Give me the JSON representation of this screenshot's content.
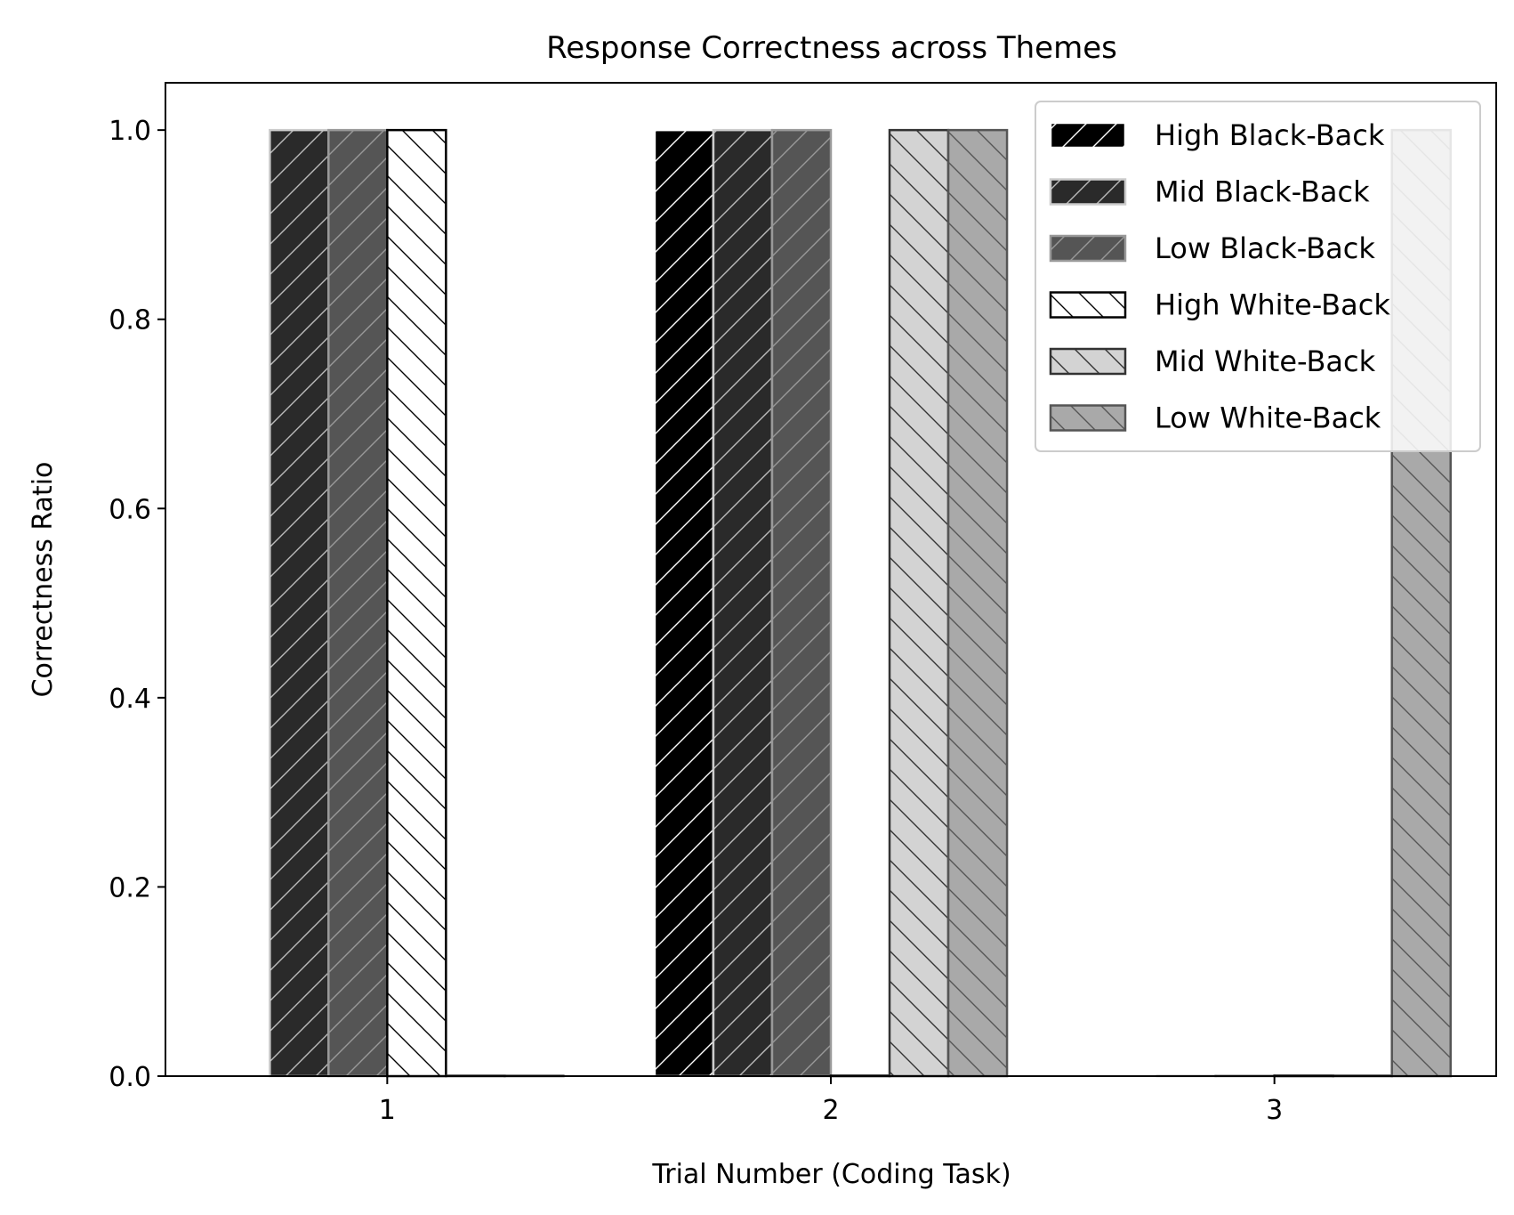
{
  "chart_data": {
    "type": "bar",
    "title": "Response Correctness across Themes",
    "xlabel": "Trial Number (Coding Task)",
    "ylabel": "Correctness Ratio",
    "categories": [
      "1",
      "2",
      "3"
    ],
    "ylim": [
      0,
      1.05
    ],
    "yticks": [
      "0.0",
      "0.2",
      "0.4",
      "0.6",
      "0.8",
      "1.0"
    ],
    "legend_position": "top-right",
    "grid": false,
    "series": [
      {
        "name": "High Black-Back",
        "values": [
          0,
          1,
          0
        ],
        "fill": "#000000",
        "edge": "#ffffff",
        "hatch": "/",
        "hatch_color": "#ffffff"
      },
      {
        "name": "Mid Black-Back",
        "values": [
          1,
          1,
          0
        ],
        "fill": "#2a2a2a",
        "edge": "#cccccc",
        "hatch": "/",
        "hatch_color": "#bbbbbb"
      },
      {
        "name": "Low Black-Back",
        "values": [
          1,
          1,
          0
        ],
        "fill": "#555555",
        "edge": "#999999",
        "hatch": "/",
        "hatch_color": "#999999"
      },
      {
        "name": "High White-Back",
        "values": [
          1,
          0,
          0
        ],
        "fill": "#ffffff",
        "edge": "#000000",
        "hatch": "\\",
        "hatch_color": "#000000"
      },
      {
        "name": "Mid White-Back",
        "values": [
          0,
          1,
          0
        ],
        "fill": "#d3d3d3",
        "edge": "#333333",
        "hatch": "\\",
        "hatch_color": "#333333"
      },
      {
        "name": "Low White-Back",
        "values": [
          0,
          1,
          1
        ],
        "fill": "#a9a9a9",
        "edge": "#555555",
        "hatch": "\\",
        "hatch_color": "#555555"
      }
    ]
  }
}
